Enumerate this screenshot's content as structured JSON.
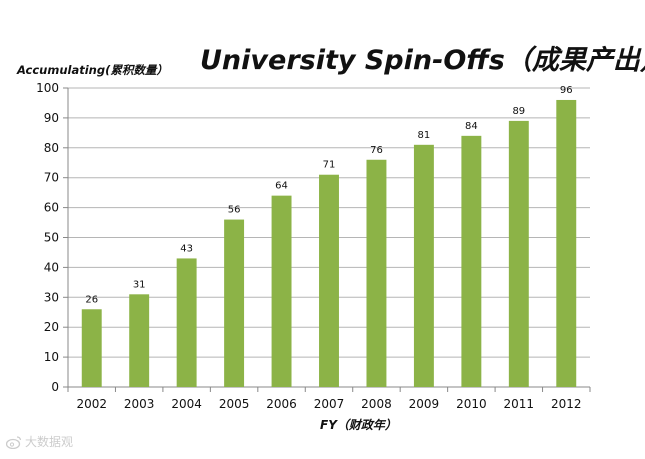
{
  "chart_data": {
    "type": "bar",
    "title": "University  Spin-Offs（成果产出）",
    "ylabel": "Accumulating(累积数量）",
    "xlabel": "FY（财政年）",
    "categories": [
      "2002",
      "2003",
      "2004",
      "2005",
      "2006",
      "2007",
      "2008",
      "2009",
      "2010",
      "2011",
      "2012"
    ],
    "values": [
      26,
      31,
      43,
      56,
      64,
      71,
      76,
      81,
      84,
      89,
      96
    ],
    "ylim": [
      0,
      100
    ],
    "yticks": [
      0,
      10,
      20,
      30,
      40,
      50,
      60,
      70,
      80,
      90,
      100
    ],
    "grid": true,
    "legend": "none",
    "bar_color": "#8cb347",
    "data_labels": true
  },
  "watermark": {
    "text": "大数据观",
    "icon": "weibo-logo-icon"
  }
}
